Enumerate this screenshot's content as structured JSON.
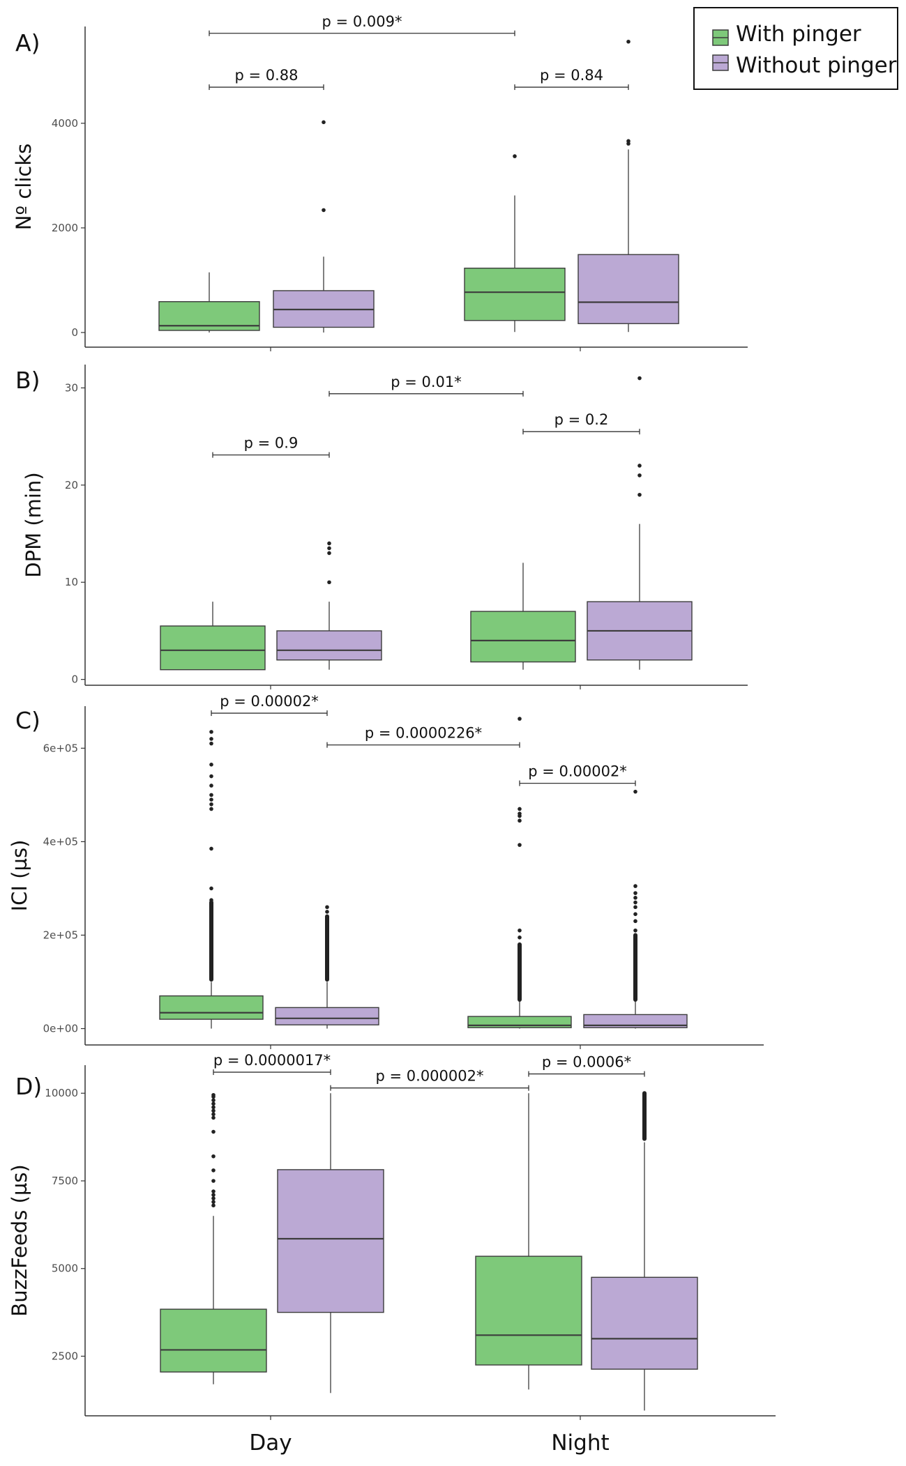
{
  "legend": {
    "items": [
      {
        "label": "With pinger",
        "color": "#7ec97a"
      },
      {
        "label": "Without pinger",
        "color": "#bba9d4"
      }
    ]
  },
  "colors": {
    "with_pinger": "#7ec97a",
    "without_pinger": "#bba9d4",
    "stroke": "#3c3c3c"
  },
  "chart_data": [
    {
      "type": "box",
      "panel_label": "A)",
      "title": "",
      "xlabel": "",
      "ylabel": "Nº clicks",
      "categories": [
        "Day",
        "Night"
      ],
      "ylim": [
        -280,
        5850
      ],
      "yticks": [
        0,
        2000,
        4000
      ],
      "ytick_labels": [
        "0",
        "2000",
        "4000"
      ],
      "show_x_tick_labels": false,
      "series": [
        {
          "name": "With pinger",
          "boxes": [
            {
              "category": "Day",
              "q1": 40,
              "median": 130,
              "q3": 590,
              "whisker_low": 0,
              "whisker_high": 1150,
              "outliers": []
            },
            {
              "category": "Night",
              "q1": 230,
              "median": 770,
              "q3": 1230,
              "whisker_low": 10,
              "whisker_high": 2620,
              "outliers": [
                3370
              ]
            }
          ]
        },
        {
          "name": "Without pinger",
          "boxes": [
            {
              "category": "Day",
              "q1": 100,
              "median": 440,
              "q3": 800,
              "whisker_low": 0,
              "whisker_high": 1450,
              "outliers": [
                2340,
                4020
              ]
            },
            {
              "category": "Night",
              "q1": 170,
              "median": 580,
              "q3": 1490,
              "whisker_low": 10,
              "whisker_high": 3500,
              "outliers": [
                3610,
                3660,
                5560
              ]
            }
          ]
        }
      ],
      "annotations": [
        {
          "text": "p = 0.009*",
          "from": "Day|With pinger",
          "to": "Night|With pinger",
          "level": 5720
        },
        {
          "text": "p = 0.88",
          "from": "Day|With pinger",
          "to": "Day|Without pinger",
          "level": 4690
        },
        {
          "text": "p = 0.84",
          "from": "Night|With pinger",
          "to": "Night|Without pinger",
          "level": 4690
        }
      ]
    },
    {
      "type": "box",
      "panel_label": "B)",
      "title": "",
      "xlabel": "",
      "ylabel": "DPM (min)",
      "categories": [
        "Day",
        "Night"
      ],
      "ylim": [
        -0.6,
        32.4
      ],
      "yticks": [
        0,
        10,
        20,
        30
      ],
      "ytick_labels": [
        "0",
        "10",
        "20",
        "30"
      ],
      "show_x_tick_labels": false,
      "series": [
        {
          "name": "With pinger",
          "boxes": [
            {
              "category": "Day",
              "q1": 1,
              "median": 3,
              "q3": 5.5,
              "whisker_low": 1,
              "whisker_high": 8,
              "outliers": []
            },
            {
              "category": "Night",
              "q1": 1.8,
              "median": 4,
              "q3": 7,
              "whisker_low": 1,
              "whisker_high": 12,
              "outliers": []
            }
          ]
        },
        {
          "name": "Without pinger",
          "boxes": [
            {
              "category": "Day",
              "q1": 2,
              "median": 3,
              "q3": 5,
              "whisker_low": 1,
              "whisker_high": 8,
              "outliers": [
                10,
                13,
                13.5,
                14
              ]
            },
            {
              "category": "Night",
              "q1": 2,
              "median": 5,
              "q3": 8,
              "whisker_low": 1,
              "whisker_high": 16,
              "outliers": [
                19,
                21,
                22,
                31
              ]
            }
          ]
        }
      ],
      "annotations": [
        {
          "text": "p = 0.01*",
          "from": "Day|Without pinger",
          "to": "Night|With pinger",
          "level": 29.4
        },
        {
          "text": "p = 0.9",
          "from": "Day|With pinger",
          "to": "Day|Without pinger",
          "level": 23.1
        },
        {
          "text": "p = 0.2",
          "from": "Night|With pinger",
          "to": "Night|Without pinger",
          "level": 25.5
        }
      ]
    },
    {
      "type": "box",
      "panel_label": "C)",
      "title": "",
      "xlabel": "",
      "ylabel": "ICI (µs)",
      "categories": [
        "Day",
        "Night"
      ],
      "ylim": [
        -35000,
        690000
      ],
      "yticks": [
        0,
        200000,
        400000,
        600000
      ],
      "ytick_labels": [
        "0e+00",
        "2e+05",
        "4e+05",
        "6e+05"
      ],
      "show_x_tick_labels": false,
      "series": [
        {
          "name": "With pinger",
          "boxes": [
            {
              "category": "Day",
              "q1": 20000,
              "median": 34000,
              "q3": 70000,
              "whisker_low": 0,
              "whisker_high": 100000,
              "dense_outliers": [
                105000,
                270000
              ],
              "outliers": [
                275000,
                300000,
                385000,
                470000,
                480000,
                490000,
                500000,
                520000,
                540000,
                565000,
                610000,
                620000,
                635000
              ]
            },
            {
              "category": "Night",
              "q1": 2000,
              "median": 7000,
              "q3": 26000,
              "whisker_low": 0,
              "whisker_high": 60000,
              "dense_outliers": [
                62000,
                180000
              ],
              "outliers": [
                195000,
                210000,
                393000,
                445000,
                455000,
                460000,
                470000,
                663000
              ]
            }
          ]
        },
        {
          "name": "Without pinger",
          "boxes": [
            {
              "category": "Day",
              "q1": 8000,
              "median": 22000,
              "q3": 45000,
              "whisker_low": 0,
              "whisker_high": 100000,
              "dense_outliers": [
                105000,
                240000
              ],
              "outliers": [
                250000,
                260000
              ]
            },
            {
              "category": "Night",
              "q1": 2000,
              "median": 7000,
              "q3": 30000,
              "whisker_low": 0,
              "whisker_high": 60000,
              "dense_outliers": [
                62000,
                200000
              ],
              "outliers": [
                210000,
                230000,
                245000,
                260000,
                270000,
                280000,
                290000,
                305000,
                507000
              ]
            }
          ]
        }
      ],
      "annotations": [
        {
          "text": "p = 0.00002*",
          "from": "Day|With pinger",
          "to": "Day|Without pinger",
          "level": 675000
        },
        {
          "text": "p = 0.0000226*",
          "from": "Day|Without pinger",
          "to": "Night|With pinger",
          "level": 607000
        },
        {
          "text": "p = 0.00002*",
          "from": "Night|With pinger",
          "to": "Night|Without pinger",
          "level": 525000
        }
      ]
    },
    {
      "type": "box",
      "panel_label": "D)",
      "title": "",
      "xlabel": "",
      "ylabel": "BuzzFeeds (µs)",
      "categories": [
        "Day",
        "Night"
      ],
      "ylim": [
        800,
        10800
      ],
      "yticks": [
        2500,
        5000,
        7500,
        10000
      ],
      "ytick_labels": [
        "2500",
        "5000",
        "7500",
        "10000"
      ],
      "show_x_tick_labels": true,
      "series": [
        {
          "name": "With pinger",
          "boxes": [
            {
              "category": "Day",
              "q1": 2050,
              "median": 2680,
              "q3": 3840,
              "whisker_low": 1700,
              "whisker_high": 6500,
              "outliers": [
                6800,
                6900,
                7000,
                7100,
                7200,
                7500,
                7800,
                8200,
                8900,
                9300,
                9400,
                9500,
                9600,
                9700,
                9800,
                9900,
                9950
              ]
            },
            {
              "category": "Night",
              "q1": 2250,
              "median": 3100,
              "q3": 5350,
              "whisker_low": 1550,
              "whisker_high": 10000,
              "outliers": []
            }
          ]
        },
        {
          "name": "Without pinger",
          "boxes": [
            {
              "category": "Day",
              "q1": 3750,
              "median": 5850,
              "q3": 7820,
              "whisker_low": 1450,
              "whisker_high": 10000,
              "outliers": []
            },
            {
              "category": "Night",
              "q1": 2130,
              "median": 3000,
              "q3": 4750,
              "whisker_low": 950,
              "whisker_high": 8600,
              "dense_outliers": [
                8700,
                10000
              ],
              "outliers": []
            }
          ]
        }
      ],
      "annotations": [
        {
          "text": "p = 0.0000017*",
          "from": "Day|With pinger",
          "to": "Day|Without pinger",
          "level": 10600
        },
        {
          "text": "p = 0.000002*",
          "from": "Day|Without pinger",
          "to": "Night|With pinger",
          "level": 10150
        },
        {
          "text": "p = 0.0006*",
          "from": "Night|With pinger",
          "to": "Night|Without pinger",
          "level": 10550
        }
      ]
    }
  ]
}
